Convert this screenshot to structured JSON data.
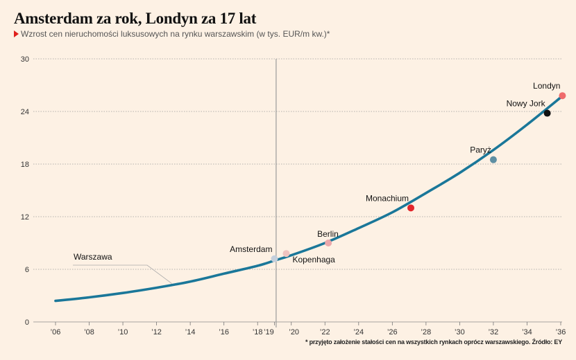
{
  "chart_data": {
    "type": "line",
    "title": "Amsterdam za rok, Londyn za 17 lat",
    "subtitle": "Wzrost cen nieruchomości luksusowych na rynku warszawskim (w tys. EUR/m kw.)*",
    "footnote": "* przyjęto założenie stałości cen na wszystkich rynkach oprócz warszawskiego. Źródło: EY",
    "xlabel": "",
    "ylabel": "",
    "ylim": [
      0,
      30
    ],
    "yticks": [
      0,
      6,
      12,
      18,
      24,
      30
    ],
    "xlim": [
      2006,
      2036
    ],
    "xticks": [
      {
        "value": 2006,
        "label": "’06"
      },
      {
        "value": 2008,
        "label": "’08"
      },
      {
        "value": 2010,
        "label": "’10"
      },
      {
        "value": 2012,
        "label": "’12"
      },
      {
        "value": 2014,
        "label": "’14"
      },
      {
        "value": 2016,
        "label": "’16"
      },
      {
        "value": 2018,
        "label": "’18"
      },
      {
        "value": 2019,
        "label": "’19"
      },
      {
        "value": 2020,
        "label": "’20"
      },
      {
        "value": 2022,
        "label": "’22"
      },
      {
        "value": 2024,
        "label": "’24"
      },
      {
        "value": 2026,
        "label": "’26"
      },
      {
        "value": 2028,
        "label": "’28"
      },
      {
        "value": 2030,
        "label": "’30"
      },
      {
        "value": 2032,
        "label": "’32"
      },
      {
        "value": 2034,
        "label": "’34"
      },
      {
        "value": 2036,
        "label": "’36"
      }
    ],
    "grid": true,
    "current_year_marker": 2019.1,
    "series": [
      {
        "name": "Warszawa",
        "color": "#1a7799",
        "x": [
          2006,
          2008,
          2010,
          2012,
          2014,
          2016,
          2018,
          2019,
          2020,
          2022,
          2024,
          2026,
          2028,
          2030,
          2032,
          2034,
          2036
        ],
        "y": [
          2.4,
          2.8,
          3.3,
          3.9,
          4.6,
          5.5,
          6.4,
          7.0,
          7.6,
          9.0,
          10.7,
          12.5,
          14.7,
          17.0,
          19.6,
          22.5,
          25.6
        ]
      }
    ],
    "points": [
      {
        "label": "Amsterdam",
        "x": 2019,
        "y": 7.2,
        "color": "#c4cfdc",
        "label_pos": "left-above"
      },
      {
        "label": "Kopenhaga",
        "x": 2019.7,
        "y": 7.8,
        "color": "#f0c4c0",
        "label_pos": "right-below"
      },
      {
        "label": "Berlin",
        "x": 2022.2,
        "y": 9.0,
        "color": "#eba8ab",
        "label_pos": "above"
      },
      {
        "label": "Monachium",
        "x": 2027.1,
        "y": 13.0,
        "color": "#e3262b",
        "label_pos": "left-above"
      },
      {
        "label": "Paryż",
        "x": 2032,
        "y": 18.5,
        "color": "#5e8fa3",
        "label_pos": "left-above"
      },
      {
        "label": "Nowy Jork",
        "x": 2035.2,
        "y": 23.8,
        "color": "#111111",
        "label_pos": "left-above"
      },
      {
        "label": "Londyn",
        "x": 2036.1,
        "y": 25.8,
        "color": "#ef6b6b",
        "label_pos": "left-above"
      }
    ],
    "series_label": {
      "text": "Warszawa",
      "at_x": 2012
    }
  }
}
